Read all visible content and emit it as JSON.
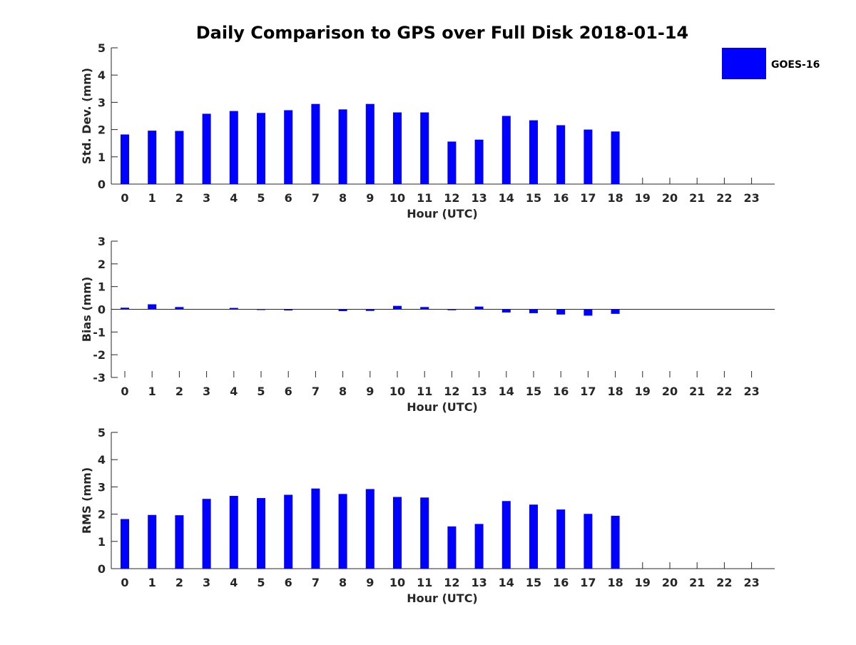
{
  "title": "Daily Comparison to GPS over Full Disk 2018-01-14",
  "legend": {
    "label": "GOES-16",
    "color": "#0000ff"
  },
  "chart_data": [
    {
      "type": "bar",
      "title": "Daily Comparison to GPS over Full Disk 2018-01-14",
      "xlabel": "Hour (UTC)",
      "ylabel": "Std. Dev. (mm)",
      "ylim": [
        0,
        5
      ],
      "yticks": [
        0,
        1,
        2,
        3,
        4,
        5
      ],
      "categories": [
        "0",
        "1",
        "2",
        "3",
        "4",
        "5",
        "6",
        "7",
        "8",
        "9",
        "10",
        "11",
        "12",
        "13",
        "14",
        "15",
        "16",
        "17",
        "18",
        "19",
        "20",
        "21",
        "22",
        "23"
      ],
      "series": [
        {
          "name": "GOES-16",
          "values": [
            1.82,
            1.96,
            1.95,
            2.58,
            2.68,
            2.61,
            2.71,
            2.94,
            2.74,
            2.94,
            2.63,
            2.63,
            1.56,
            1.63,
            2.5,
            2.34,
            2.16,
            2.0,
            1.93,
            null,
            null,
            null,
            null,
            null
          ]
        }
      ]
    },
    {
      "type": "bar",
      "xlabel": "Hour (UTC)",
      "ylabel": "Bias (mm)",
      "ylim": [
        -3,
        3
      ],
      "yticks": [
        -3,
        -2,
        -1,
        0,
        1,
        2,
        3
      ],
      "categories": [
        "0",
        "1",
        "2",
        "3",
        "4",
        "5",
        "6",
        "7",
        "8",
        "9",
        "10",
        "11",
        "12",
        "13",
        "14",
        "15",
        "16",
        "17",
        "18",
        "19",
        "20",
        "21",
        "22",
        "23"
      ],
      "series": [
        {
          "name": "GOES-16",
          "values": [
            0.07,
            0.22,
            0.1,
            0.0,
            0.06,
            -0.02,
            -0.05,
            0.0,
            -0.08,
            -0.07,
            0.15,
            0.1,
            -0.04,
            0.12,
            -0.14,
            -0.17,
            -0.23,
            -0.28,
            -0.2,
            null,
            null,
            null,
            null,
            null
          ]
        }
      ]
    },
    {
      "type": "bar",
      "xlabel": "Hour (UTC)",
      "ylabel": "RMS (mm)",
      "ylim": [
        0,
        5
      ],
      "yticks": [
        0,
        1,
        2,
        3,
        4,
        5
      ],
      "categories": [
        "0",
        "1",
        "2",
        "3",
        "4",
        "5",
        "6",
        "7",
        "8",
        "9",
        "10",
        "11",
        "12",
        "13",
        "14",
        "15",
        "16",
        "17",
        "18",
        "19",
        "20",
        "21",
        "22",
        "23"
      ],
      "series": [
        {
          "name": "GOES-16",
          "values": [
            1.82,
            1.97,
            1.96,
            2.56,
            2.67,
            2.59,
            2.71,
            2.94,
            2.74,
            2.92,
            2.63,
            2.61,
            1.55,
            1.64,
            2.48,
            2.35,
            2.17,
            2.01,
            1.94,
            null,
            null,
            null,
            null,
            null
          ]
        }
      ]
    }
  ]
}
